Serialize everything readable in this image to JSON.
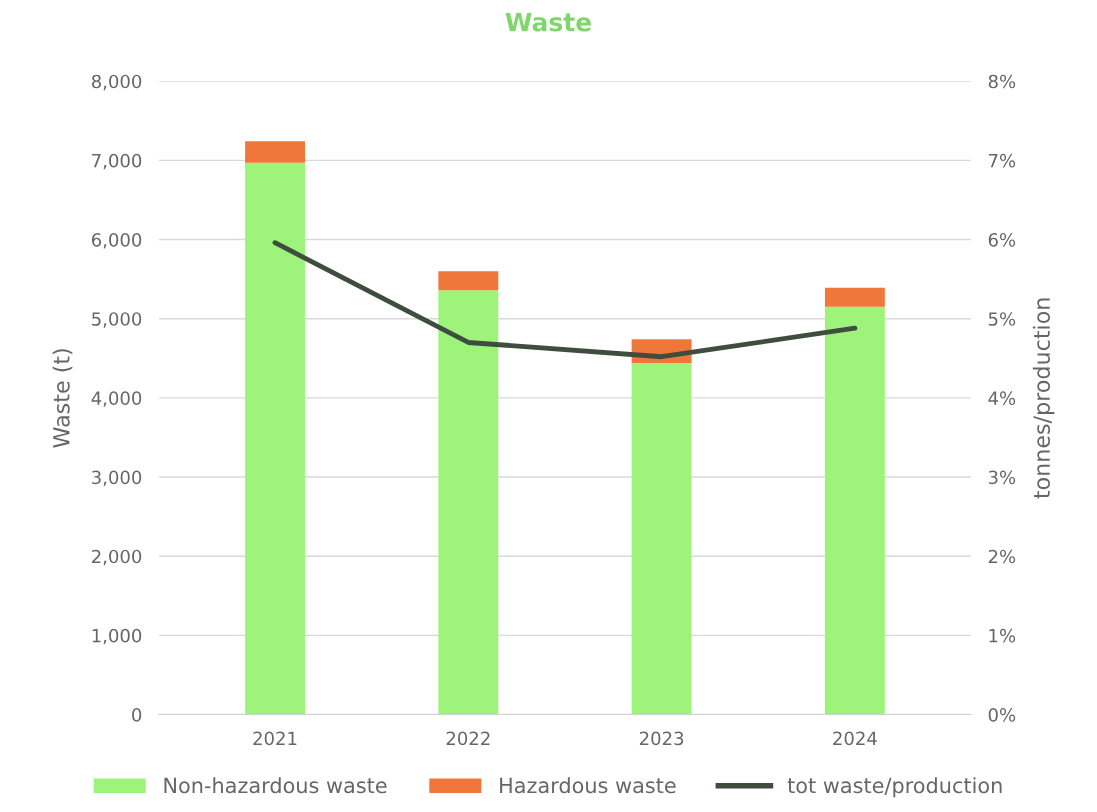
{
  "chart_data": {
    "type": "bar",
    "title": "Waste",
    "ylabel": "Waste (t)",
    "y2label": "tonnes/production",
    "categories": [
      "2021",
      "2022",
      "2023",
      "2024"
    ],
    "stacked": true,
    "series": [
      {
        "name": "Non-hazardous waste",
        "color": "#9ef47b",
        "values": [
          6970,
          5360,
          4440,
          5150
        ]
      },
      {
        "name": "Hazardous waste",
        "color": "#f0773a",
        "values": [
          270,
          240,
          300,
          240
        ]
      },
      {
        "name": "tot waste/production",
        "type": "line",
        "axis": "y2",
        "color": "#3e4d3e",
        "values": [
          5.96,
          4.7,
          4.52,
          4.88
        ]
      }
    ],
    "ylim": [
      0,
      8000
    ],
    "yticks": [
      {
        "value": 0,
        "label": "0"
      },
      {
        "value": 1000,
        "label": "1,000"
      },
      {
        "value": 2000,
        "label": "2,000"
      },
      {
        "value": 3000,
        "label": "3,000"
      },
      {
        "value": 4000,
        "label": "4,000"
      },
      {
        "value": 5000,
        "label": "5,000"
      },
      {
        "value": 6000,
        "label": "6,000"
      },
      {
        "value": 7000,
        "label": "7,000"
      },
      {
        "value": 8000,
        "label": "8,000"
      }
    ],
    "y2lim": [
      0,
      8
    ],
    "y2ticks": [
      {
        "value": 0,
        "label": "0%"
      },
      {
        "value": 1,
        "label": "1%"
      },
      {
        "value": 2,
        "label": "2%"
      },
      {
        "value": 3,
        "label": "3%"
      },
      {
        "value": 4,
        "label": "4%"
      },
      {
        "value": 5,
        "label": "5%"
      },
      {
        "value": 6,
        "label": "6%"
      },
      {
        "value": 7,
        "label": "7%"
      },
      {
        "value": 8,
        "label": "8%"
      }
    ],
    "grid": "y",
    "legend": "bottom",
    "marker": "none",
    "line_style": "solid"
  }
}
